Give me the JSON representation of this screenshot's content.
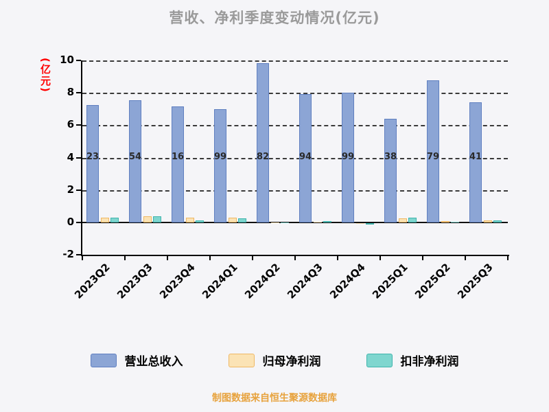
{
  "footer": {
    "source": "制图数据来自恒生聚源数据库"
  },
  "chart_data": {
    "type": "bar",
    "title": "营收、净利季度变动情况(亿元)",
    "ylabel": "(亿元)",
    "xlabel": "",
    "ylim": [
      -2,
      10
    ],
    "yticks": [
      -2,
      0,
      2,
      4,
      6,
      8,
      10
    ],
    "grid": "dashed-horizontal",
    "legend_position": "bottom",
    "categories": [
      "2023Q2",
      "2023Q3",
      "2023Q4",
      "2024Q1",
      "2024Q2",
      "2024Q3",
      "2024Q4",
      "2025Q1",
      "2025Q2",
      "2025Q3"
    ],
    "series": [
      {
        "name": "营业总收入",
        "color": "#8ca5d5",
        "border_color": "#5f7fc0",
        "values": [
          7.23,
          7.54,
          7.16,
          6.99,
          9.82,
          7.94,
          7.99,
          6.38,
          8.79,
          7.41
        ]
      },
      {
        "name": "归母净利润",
        "color": "#fbe3b5",
        "border_color": "#efb863",
        "values": [
          0.3,
          0.38,
          0.28,
          0.3,
          0.01,
          0.05,
          -0.04,
          0.26,
          0.08,
          0.12
        ]
      },
      {
        "name": "扣非净利润",
        "color": "#7fd6cf",
        "border_color": "#3fb4ac",
        "values": [
          0.3,
          0.38,
          0.1,
          0.24,
          0.01,
          0.08,
          -0.07,
          0.28,
          0.04,
          0.14
        ]
      }
    ],
    "bar_value_labels": [
      "23",
      "54",
      "16",
      "99",
      "82",
      "94",
      "99",
      "38",
      "79",
      "41"
    ]
  }
}
